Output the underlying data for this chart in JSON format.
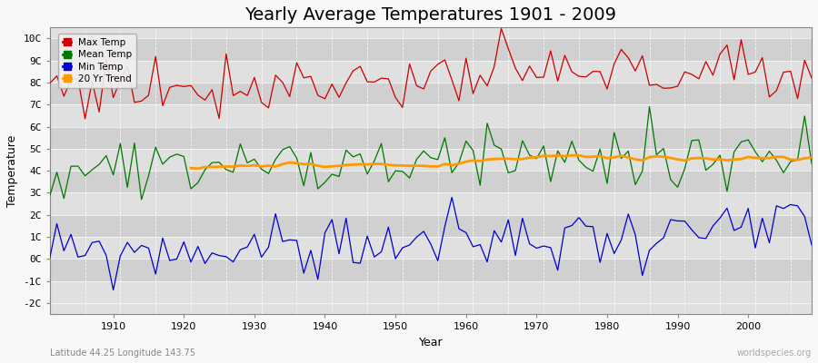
{
  "title": "Yearly Average Temperatures 1901 - 2009",
  "xlabel": "Year",
  "ylabel": "Temperature",
  "lat_lon_label": "Latitude 44.25 Longitude 143.75",
  "watermark": "worldspecies.org",
  "legend_labels": [
    "Max Temp",
    "Mean Temp",
    "Min Temp",
    "20 Yr Trend"
  ],
  "legend_colors": [
    "#cc0000",
    "#007700",
    "#0000cc",
    "#ff9900"
  ],
  "line_colors": {
    "max": "#cc0000",
    "mean": "#007700",
    "min": "#0000cc",
    "trend": "#ff9900"
  },
  "yticks": [
    -2,
    -1,
    0,
    1,
    2,
    3,
    4,
    5,
    6,
    7,
    8,
    9,
    10
  ],
  "ytick_labels": [
    "-2C",
    "-1C",
    "0C",
    "1C",
    "2C",
    "3C",
    "4C",
    "5C",
    "6C",
    "7C",
    "8C",
    "9C",
    "10C"
  ],
  "ylim": [
    -2.5,
    10.5
  ],
  "xlim": [
    1901,
    2009
  ],
  "bg_color": "#f0f0f0",
  "plot_bg_color": "#e0e0e0",
  "stripe_color_dark": "#d0d0d0",
  "stripe_color_light": "#e0e0e0",
  "grid_color": "#ffffff",
  "title_fontsize": 14,
  "label_fontsize": 9,
  "tick_fontsize": 8,
  "trend_start_year": 1921,
  "figsize": [
    9.0,
    4.0
  ],
  "dpi": 100
}
